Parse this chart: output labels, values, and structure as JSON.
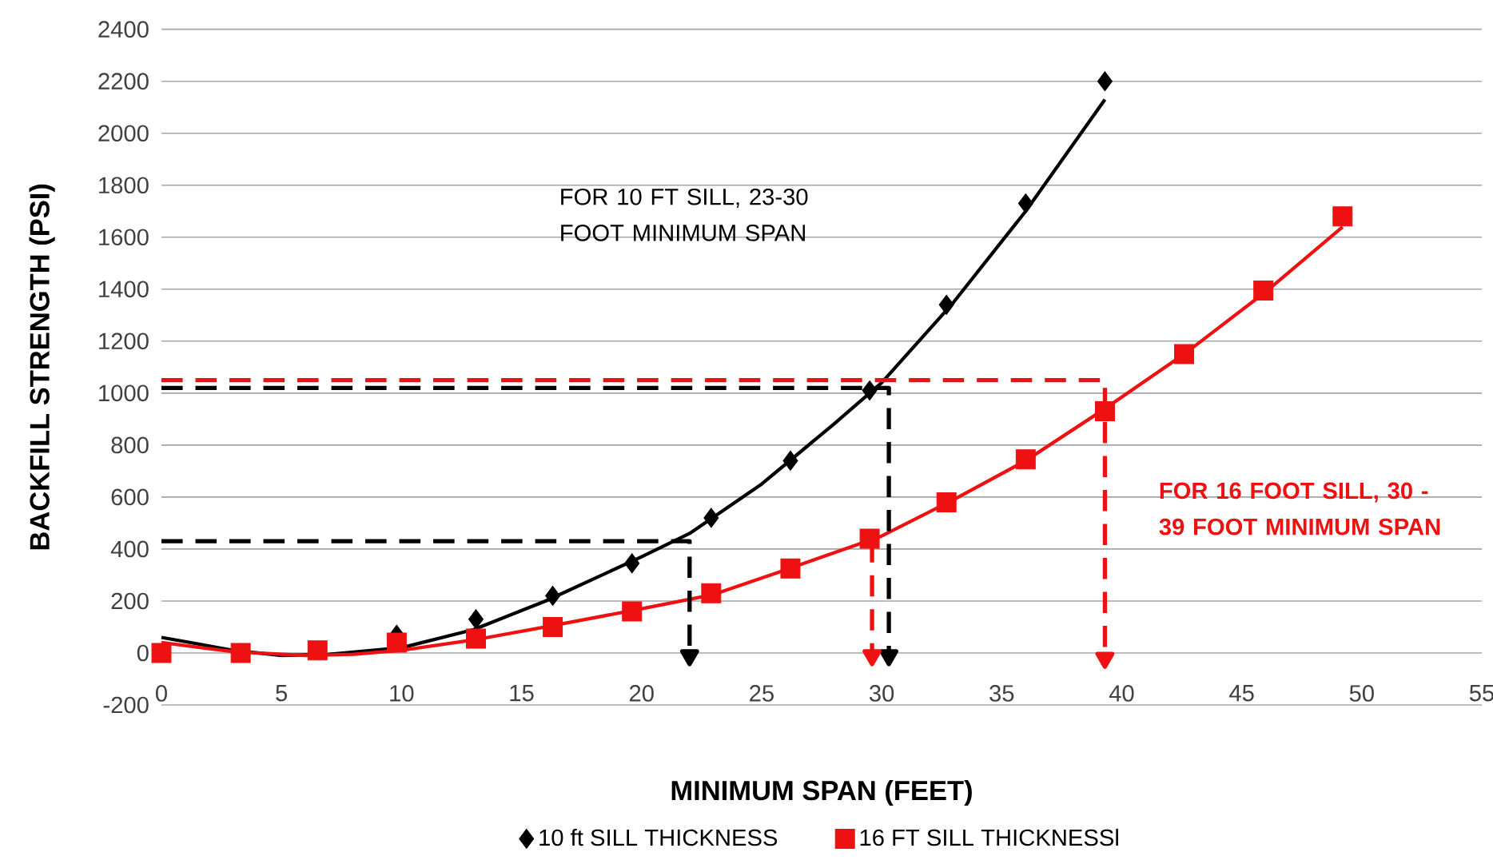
{
  "chart_data": {
    "type": "scatter",
    "xlabel": "MINIMUM SPAN (FEET)",
    "ylabel": "BACKFILL STRENGTH (PSI)",
    "xlim": [
      0,
      55
    ],
    "xticks": [
      0,
      5,
      10,
      15,
      20,
      25,
      30,
      35,
      40,
      45,
      50,
      55
    ],
    "ylim": [
      -200,
      2400
    ],
    "yticks": [
      -200,
      0,
      200,
      400,
      600,
      800,
      1000,
      1200,
      1400,
      1600,
      1800,
      2000,
      2200,
      2400
    ],
    "grid": "y",
    "legend": "bottom",
    "annotations": [
      "FOR 10 FT SILL, 23-30 FOOT MINIMUM SPAN",
      "FOR 16 FOOT SILL, 30 - 39 FOOT MINIMUM SPAN"
    ],
    "series": [
      {
        "name": "10 ft SILL THICKNESS",
        "marker": "diamond",
        "color": "#000000",
        "x": [
          9.8,
          13.1,
          16.3,
          19.6,
          22.9,
          26.2,
          29.5,
          32.7,
          36,
          39.3
        ],
        "values": [
          70,
          130,
          220,
          345,
          520,
          740,
          1010,
          1340,
          1730,
          2200
        ]
      },
      {
        "name": "16 FT SILL THICKNESSl",
        "marker": "square",
        "color": "#ee1111",
        "x": [
          0,
          3.3,
          6.5,
          9.8,
          13.1,
          16.3,
          19.6,
          22.9,
          26.2,
          29.5,
          32.7,
          36,
          39.3,
          42.6,
          45.9,
          49.2
        ],
        "values": [
          0,
          0,
          10,
          40,
          55,
          100,
          160,
          230,
          325,
          440,
          580,
          745,
          930,
          1150,
          1395,
          1680
        ]
      },
      {
        "type": "line",
        "marker": "none",
        "line_style": "solid",
        "color": "#000000",
        "x": [
          0,
          3,
          5,
          7,
          10,
          13,
          16,
          20,
          22,
          25,
          28,
          30,
          33,
          36,
          39.3
        ],
        "values": [
          60,
          10,
          -10,
          -5,
          20,
          90,
          200,
          370,
          460,
          650,
          880,
          1040,
          1350,
          1700,
          2130
        ]
      },
      {
        "type": "line",
        "marker": "none",
        "line_style": "solid",
        "color": "#ee1111",
        "x": [
          0,
          3,
          6,
          8,
          10,
          13,
          16,
          20,
          23,
          26,
          30,
          33,
          36,
          39.3,
          42.6,
          46,
          49.2
        ],
        "values": [
          40,
          5,
          -10,
          -5,
          10,
          50,
          100,
          170,
          225,
          320,
          450,
          590,
          740,
          940,
          1150,
          1390,
          1640
        ]
      },
      {
        "type": "line",
        "marker": "none",
        "line_style": "dashed",
        "color": "#000000",
        "x": [
          0,
          30.3,
          30.3
        ],
        "values": [
          1020,
          1020,
          -10
        ]
      },
      {
        "type": "line",
        "marker": "none",
        "line_style": "dashed",
        "color": "#000000",
        "x": [
          0,
          22,
          22
        ],
        "values": [
          430,
          430,
          -10
        ]
      },
      {
        "type": "line",
        "marker": "none",
        "line_style": "dashed",
        "color": "#ee1111",
        "x": [
          0,
          39.3,
          39.3
        ],
        "values": [
          1050,
          1050,
          -20
        ]
      },
      {
        "type": "line",
        "marker": "triangle",
        "line_style": "dashed",
        "color": "#ee1111",
        "x": [
          29.6,
          29.6
        ],
        "values": [
          430,
          -10
        ]
      }
    ]
  }
}
